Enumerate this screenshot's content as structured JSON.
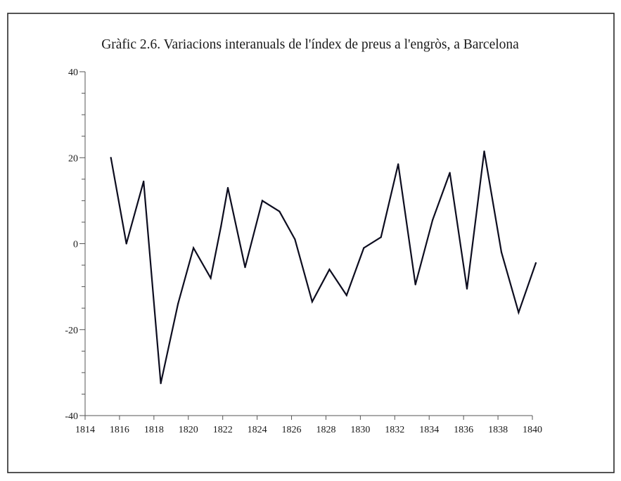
{
  "chart_data": {
    "type": "line",
    "title": "Gràfic 2.6. Variacions interanuals de l'índex de preus a l'engròs, a Barcelona",
    "xlabel": "",
    "ylabel": "",
    "xlim": [
      1814,
      1840
    ],
    "ylim": [
      -40,
      40
    ],
    "x_ticks": [
      1814,
      1816,
      1818,
      1820,
      1822,
      1824,
      1826,
      1828,
      1830,
      1832,
      1834,
      1836,
      1838,
      1840
    ],
    "x_tick_labels": [
      "1814",
      "1816",
      "1818",
      "1820",
      "1822",
      "1824",
      "1826",
      "1828",
      "1830",
      "1832",
      "1834",
      "1836",
      "1838",
      "1840"
    ],
    "y_major_ticks": [
      -40,
      -20,
      0,
      20,
      40
    ],
    "y_tick_labels": [
      "-40",
      "-20",
      "0",
      "20",
      "40"
    ],
    "y_minor_ticks": [
      -35,
      -30,
      -25,
      -15,
      -10,
      -5,
      5,
      10,
      15,
      25,
      30,
      35
    ],
    "grid": false,
    "line_color": "#0d0d1f",
    "series": [
      {
        "x": [
          1815.5,
          1816.4,
          1817.4,
          1818.4,
          1819.4,
          1820.3,
          1821.3,
          1821.9,
          1822.3,
          1823.3,
          1824.3,
          1825.3,
          1826.2,
          1827.2,
          1828.2,
          1829.2,
          1830.2,
          1831.2,
          1832.2,
          1833.2,
          1834.2,
          1835.2,
          1836.2,
          1837.2,
          1838.2,
          1839.2,
          1840.2
        ],
        "values": [
          20,
          0,
          14.5,
          -32.5,
          -14,
          -1,
          -8,
          4,
          13,
          -5.5,
          10,
          7.5,
          1,
          -13.5,
          -6,
          -12,
          -1,
          1.5,
          18.5,
          -9.5,
          5.5,
          16.5,
          -10.5,
          21.5,
          -2,
          -16,
          -4.5
        ]
      }
    ]
  }
}
